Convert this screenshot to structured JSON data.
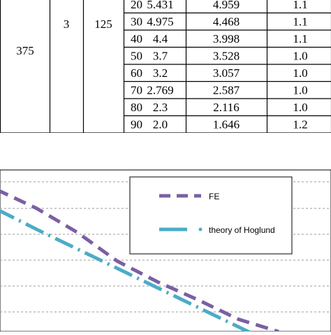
{
  "table": {
    "group": {
      "col1": "375",
      "col2": "3",
      "col3": "125"
    },
    "rows": [
      {
        "a": "20",
        "b": "5.431",
        "c": "4.959",
        "d": "1.1"
      },
      {
        "a": "30",
        "b": "4.975",
        "c": "4.468",
        "d": "1.1"
      },
      {
        "a": "40",
        "b": "4.4",
        "c": "3.998",
        "d": "1.1"
      },
      {
        "a": "50",
        "b": "3.7",
        "c": "3.528",
        "d": "1.0"
      },
      {
        "a": "60",
        "b": "3.2",
        "c": "3.057",
        "d": "1.0"
      },
      {
        "a": "70",
        "b": "2.769",
        "c": "2.587",
        "d": "1.0"
      },
      {
        "a": "80",
        "b": "2.3",
        "c": "2.116",
        "d": "1.0"
      },
      {
        "a": "90",
        "b": "2.0",
        "c": "1.646",
        "d": "1.2"
      }
    ]
  },
  "chart_data": {
    "type": "line",
    "title": "",
    "xlabel": "",
    "ylabel": "",
    "grid": true,
    "legend_position": "top-right",
    "series": [
      {
        "name": "FE",
        "color": "#7B5FA3",
        "style": "dashed",
        "x": [
          20,
          30,
          40,
          50,
          60,
          70,
          80,
          90
        ],
        "y": [
          5.431,
          4.975,
          4.4,
          3.7,
          3.2,
          2.769,
          2.3,
          2.0
        ]
      },
      {
        "name": "theory of Hoglund",
        "color": "#4BACC6",
        "style": "dash-dot",
        "x": [
          20,
          30,
          40,
          50,
          60,
          70,
          80,
          90
        ],
        "y": [
          4.959,
          4.468,
          3.998,
          3.528,
          3.057,
          2.587,
          2.116,
          1.646
        ]
      }
    ]
  }
}
